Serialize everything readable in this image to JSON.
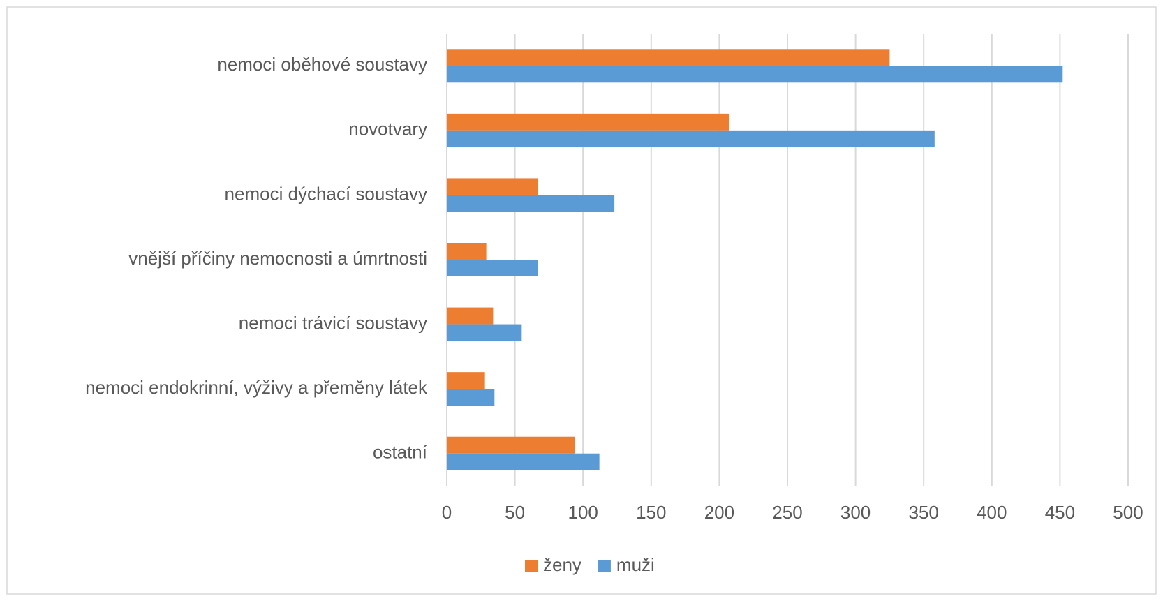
{
  "chart_data": {
    "type": "hbar",
    "categories": [
      "nemoci oběhové soustavy",
      "novotvary",
      "nemoci dýchací soustavy",
      "vnější příčiny nemocnosti a úmrtnosti",
      "nemoci trávicí soustavy",
      "nemoci endokrinní, výživy a přeměny látek",
      "ostatní"
    ],
    "series": [
      {
        "name": "ženy",
        "color": "#ed7d31",
        "values": [
          325,
          207,
          67,
          29,
          34,
          28,
          94
        ]
      },
      {
        "name": "muži",
        "color": "#5b9bd5",
        "values": [
          452,
          358,
          123,
          67,
          55,
          35,
          112
        ]
      }
    ],
    "xlim": [
      0,
      500
    ],
    "xticks": [
      0,
      50,
      100,
      150,
      200,
      250,
      300,
      350,
      400,
      450,
      500
    ],
    "grid": true,
    "legend": "bottom"
  }
}
